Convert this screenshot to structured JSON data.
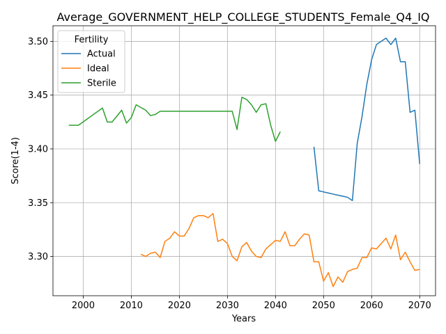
{
  "chart_data": {
    "type": "line",
    "title": "Average_GOVERNMENT_HELP_COLLEGE_STUDENTS_Female_Q4_IQ",
    "xlabel": "Years",
    "ylabel": "Score(1-4)",
    "xlim": [
      1993.7,
      2073.3
    ],
    "ylim": [
      3.2635,
      3.5145
    ],
    "xticks": [
      2000,
      2010,
      2020,
      2030,
      2040,
      2050,
      2060,
      2070
    ],
    "yticks": [
      3.3,
      3.35,
      3.4,
      3.45,
      3.5
    ],
    "ytick_labels": [
      "3.30",
      "3.35",
      "3.40",
      "3.45",
      "3.50"
    ],
    "grid": true,
    "legend": {
      "title": "Fertility",
      "placement": "top-left"
    },
    "series": [
      {
        "name": "Actual",
        "color": "#1f77b4",
        "points": [
          [
            2048,
            3.402
          ],
          [
            2049,
            3.361
          ],
          [
            2050,
            3.36
          ],
          [
            2051,
            3.359
          ],
          [
            2052,
            3.358
          ],
          [
            2053,
            3.357
          ],
          [
            2054,
            3.356
          ],
          [
            2055,
            3.355
          ],
          [
            2056,
            3.352
          ],
          [
            2057,
            3.405
          ],
          [
            2058,
            3.43
          ],
          [
            2059,
            3.46
          ],
          [
            2060,
            3.483
          ],
          [
            2061,
            3.497
          ],
          [
            2062,
            3.5
          ],
          [
            2063,
            3.503
          ],
          [
            2064,
            3.497
          ],
          [
            2065,
            3.503
          ],
          [
            2066,
            3.481
          ],
          [
            2067,
            3.481
          ],
          [
            2068,
            3.434
          ],
          [
            2069,
            3.436
          ],
          [
            2070,
            3.386
          ]
        ]
      },
      {
        "name": "Ideal",
        "color": "#ff7f0e",
        "points": [
          [
            2012,
            3.302
          ],
          [
            2013,
            3.3
          ],
          [
            2014,
            3.303
          ],
          [
            2015,
            3.304
          ],
          [
            2016,
            3.299
          ],
          [
            2017,
            3.314
          ],
          [
            2018,
            3.317
          ],
          [
            2019,
            3.323
          ],
          [
            2020,
            3.319
          ],
          [
            2021,
            3.319
          ],
          [
            2022,
            3.326
          ],
          [
            2023,
            3.336
          ],
          [
            2024,
            3.338
          ],
          [
            2025,
            3.338
          ],
          [
            2026,
            3.336
          ],
          [
            2027,
            3.34
          ],
          [
            2028,
            3.314
          ],
          [
            2029,
            3.316
          ],
          [
            2030,
            3.312
          ],
          [
            2031,
            3.3
          ],
          [
            2032,
            3.296
          ],
          [
            2033,
            3.309
          ],
          [
            2034,
            3.313
          ],
          [
            2035,
            3.305
          ],
          [
            2036,
            3.3
          ],
          [
            2037,
            3.299
          ],
          [
            2038,
            3.307
          ],
          [
            2039,
            3.311
          ],
          [
            2040,
            3.315
          ],
          [
            2041,
            3.314
          ],
          [
            2042,
            3.323
          ],
          [
            2043,
            3.31
          ],
          [
            2044,
            3.31
          ],
          [
            2045,
            3.316
          ],
          [
            2046,
            3.321
          ],
          [
            2047,
            3.32
          ],
          [
            2048,
            3.295
          ],
          [
            2049,
            3.295
          ],
          [
            2050,
            3.277
          ],
          [
            2051,
            3.285
          ],
          [
            2052,
            3.272
          ],
          [
            2053,
            3.281
          ],
          [
            2054,
            3.276
          ],
          [
            2055,
            3.286
          ],
          [
            2056,
            3.288
          ],
          [
            2057,
            3.289
          ],
          [
            2058,
            3.299
          ],
          [
            2059,
            3.299
          ],
          [
            2060,
            3.308
          ],
          [
            2061,
            3.307
          ],
          [
            2062,
            3.312
          ],
          [
            2063,
            3.317
          ],
          [
            2064,
            3.307
          ],
          [
            2065,
            3.32
          ],
          [
            2066,
            3.297
          ],
          [
            2067,
            3.304
          ],
          [
            2068,
            3.295
          ],
          [
            2069,
            3.287
          ],
          [
            2070,
            3.288
          ]
        ]
      },
      {
        "name": "Sterile",
        "color": "#2ca02c",
        "points": [
          [
            1997,
            3.422
          ],
          [
            1999,
            3.422
          ],
          [
            2004,
            3.438
          ],
          [
            2005,
            3.425
          ],
          [
            2006,
            3.425
          ],
          [
            2008,
            3.436
          ],
          [
            2009,
            3.424
          ],
          [
            2010,
            3.429
          ],
          [
            2011,
            3.441
          ],
          [
            2013,
            3.436
          ],
          [
            2014,
            3.431
          ],
          [
            2015,
            3.432
          ],
          [
            2016,
            3.435
          ],
          [
            2017,
            3.435
          ],
          [
            2018,
            3.435
          ],
          [
            2019,
            3.435
          ],
          [
            2020,
            3.435
          ],
          [
            2021,
            3.435
          ],
          [
            2022,
            3.435
          ],
          [
            2023,
            3.435
          ],
          [
            2024,
            3.435
          ],
          [
            2025,
            3.435
          ],
          [
            2026,
            3.435
          ],
          [
            2027,
            3.435
          ],
          [
            2028,
            3.435
          ],
          [
            2029,
            3.435
          ],
          [
            2030,
            3.435
          ],
          [
            2031,
            3.435
          ],
          [
            2032,
            3.418
          ],
          [
            2033,
            3.448
          ],
          [
            2034,
            3.446
          ],
          [
            2035,
            3.441
          ],
          [
            2036,
            3.434
          ],
          [
            2037,
            3.441
          ],
          [
            2038,
            3.442
          ],
          [
            2039,
            3.422
          ],
          [
            2040,
            3.407
          ],
          [
            2041,
            3.416
          ]
        ]
      }
    ]
  }
}
